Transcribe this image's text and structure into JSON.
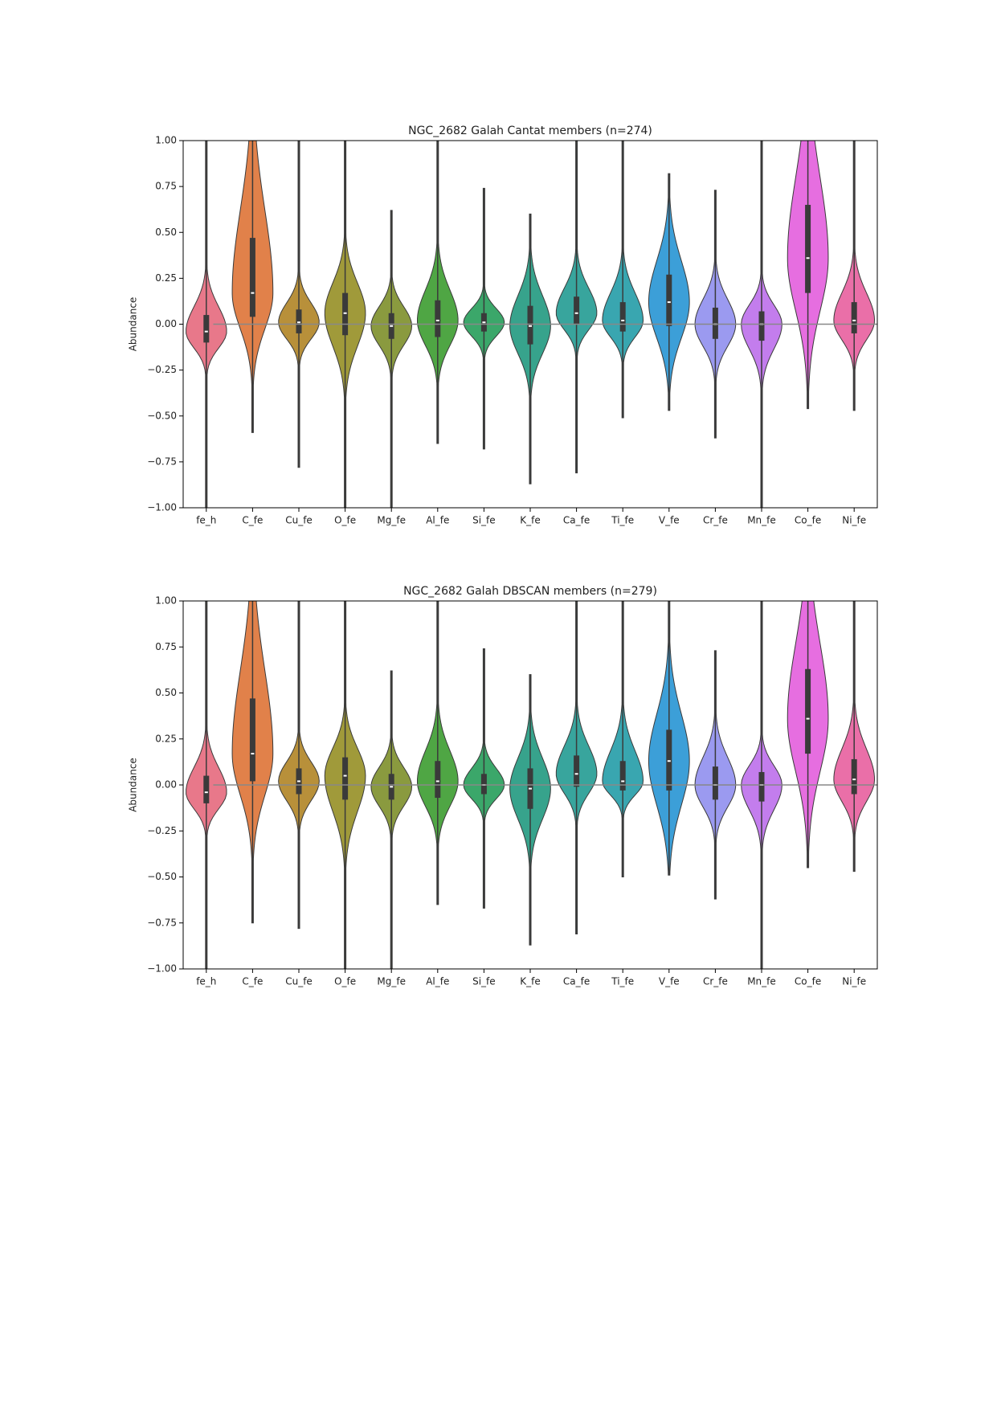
{
  "chart_data": [
    {
      "type": "violin",
      "title": "NGC_2682 Galah Cantat members (n=274)",
      "ylabel": "Abundance",
      "categories": [
        "fe_h",
        "C_fe",
        "Cu_fe",
        "O_fe",
        "Mg_fe",
        "Al_fe",
        "Si_fe",
        "K_fe",
        "Ca_fe",
        "Ti_fe",
        "V_fe",
        "Cr_fe",
        "Mn_fe",
        "Co_fe",
        "Ni_fe"
      ],
      "colors": [
        "#e8788a",
        "#e1814a",
        "#b8903a",
        "#a09a3a",
        "#8a9a3f",
        "#4fa644",
        "#3ba76a",
        "#37a38c",
        "#38a59d",
        "#39a6b0",
        "#3c9fd8",
        "#9b9af0",
        "#c37ded",
        "#e66ee0",
        "#ea6fa8"
      ],
      "median": [
        -0.04,
        0.17,
        0.01,
        0.06,
        -0.01,
        0.02,
        0.01,
        -0.01,
        0.06,
        0.02,
        0.12,
        0.0,
        0.0,
        0.36,
        0.02
      ],
      "q1": [
        -0.1,
        0.04,
        -0.05,
        -0.06,
        -0.08,
        -0.07,
        -0.04,
        -0.11,
        0.0,
        -0.04,
        -0.01,
        -0.08,
        -0.09,
        0.17,
        -0.05
      ],
      "q3": [
        0.05,
        0.47,
        0.08,
        0.17,
        0.06,
        0.13,
        0.06,
        0.1,
        0.15,
        0.12,
        0.27,
        0.09,
        0.07,
        0.65,
        0.12
      ],
      "min": [
        -1.0,
        -0.59,
        -0.78,
        -1.0,
        -1.0,
        -0.65,
        -0.68,
        -0.87,
        -0.81,
        -0.51,
        -0.47,
        -0.62,
        -1.0,
        -0.46,
        -0.47
      ],
      "max": [
        1.0,
        1.0,
        1.0,
        1.0,
        0.62,
        1.0,
        0.74,
        0.6,
        1.0,
        1.0,
        0.82,
        0.73,
        1.0,
        1.0,
        1.0
      ],
      "hline": 0,
      "ylim": [
        -1.0,
        1.0
      ],
      "yticks": [
        {
          "value": -1.0,
          "label": "−1.00"
        },
        {
          "value": -0.75,
          "label": "−0.75"
        },
        {
          "value": -0.5,
          "label": "−0.50"
        },
        {
          "value": -0.25,
          "label": "−0.25"
        },
        {
          "value": 0,
          "label": "0.00"
        },
        {
          "value": 0.25,
          "label": "0.25"
        },
        {
          "value": 0.5,
          "label": "0.50"
        },
        {
          "value": 0.75,
          "label": "0.75"
        },
        {
          "value": 1.0,
          "label": "1.00"
        }
      ]
    },
    {
      "type": "violin",
      "title": "NGC_2682 Galah DBSCAN members (n=279)",
      "ylabel": "Abundance",
      "categories": [
        "fe_h",
        "C_fe",
        "Cu_fe",
        "O_fe",
        "Mg_fe",
        "Al_fe",
        "Si_fe",
        "K_fe",
        "Ca_fe",
        "Ti_fe",
        "V_fe",
        "Cr_fe",
        "Mn_fe",
        "Co_fe",
        "Ni_fe"
      ],
      "colors": [
        "#e8788a",
        "#e1814a",
        "#b8903a",
        "#a09a3a",
        "#8a9a3f",
        "#4fa644",
        "#3ba76a",
        "#37a38c",
        "#38a59d",
        "#39a6b0",
        "#3c9fd8",
        "#9b9af0",
        "#c37ded",
        "#e66ee0",
        "#ea6fa8"
      ],
      "median": [
        -0.04,
        0.17,
        0.02,
        0.05,
        -0.01,
        0.02,
        0.0,
        -0.02,
        0.06,
        0.02,
        0.13,
        0.0,
        0.0,
        0.36,
        0.03
      ],
      "q1": [
        -0.1,
        0.02,
        -0.05,
        -0.08,
        -0.08,
        -0.07,
        -0.05,
        -0.13,
        -0.01,
        -0.03,
        -0.03,
        -0.08,
        -0.09,
        0.17,
        -0.05
      ],
      "q3": [
        0.05,
        0.47,
        0.09,
        0.15,
        0.06,
        0.13,
        0.06,
        0.09,
        0.16,
        0.13,
        0.3,
        0.1,
        0.07,
        0.63,
        0.14
      ],
      "min": [
        -1.0,
        -0.75,
        -0.78,
        -1.0,
        -1.0,
        -0.65,
        -0.67,
        -0.87,
        -0.81,
        -0.5,
        -0.49,
        -0.62,
        -1.0,
        -0.45,
        -0.47
      ],
      "max": [
        1.0,
        1.0,
        1.0,
        1.0,
        0.62,
        1.0,
        0.74,
        0.6,
        1.0,
        1.0,
        1.0,
        0.73,
        1.0,
        1.0,
        1.0
      ],
      "hline": 0,
      "ylim": [
        -1.0,
        1.0
      ],
      "yticks": [
        {
          "value": -1.0,
          "label": "−1.00"
        },
        {
          "value": -0.75,
          "label": "−0.75"
        },
        {
          "value": -0.5,
          "label": "−0.50"
        },
        {
          "value": -0.25,
          "label": "−0.25"
        },
        {
          "value": 0,
          "label": "0.00"
        },
        {
          "value": 0.25,
          "label": "0.25"
        },
        {
          "value": 0.5,
          "label": "0.50"
        },
        {
          "value": 0.75,
          "label": "0.75"
        },
        {
          "value": 1.0,
          "label": "1.00"
        }
      ]
    }
  ]
}
